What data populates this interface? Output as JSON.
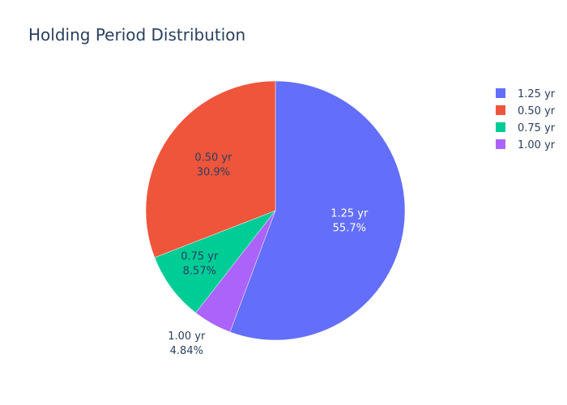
{
  "chart_data": {
    "type": "pie",
    "title": "Holding Period Distribution",
    "slices": [
      {
        "label": "1.25 yr",
        "percent_label": "55.7%",
        "value": 55.7,
        "color": "#636efa",
        "label_color": "#ffffff",
        "label_position": "inside"
      },
      {
        "label": "1.00 yr",
        "percent_label": "4.84%",
        "value": 4.84,
        "color": "#ab63fa",
        "label_color": "#2a3f5f",
        "label_position": "outside"
      },
      {
        "label": "0.75 yr",
        "percent_label": "8.57%",
        "value": 8.57,
        "color": "#00cc96",
        "label_color": "#2a3f5f",
        "label_position": "inside"
      },
      {
        "label": "0.50 yr",
        "percent_label": "30.9%",
        "value": 30.9,
        "color": "#ef553b",
        "label_color": "#2a3f5f",
        "label_position": "inside"
      }
    ],
    "legend": {
      "placement": "top-right",
      "entries": [
        {
          "label": "1.25 yr",
          "color": "#636efa"
        },
        {
          "label": "0.50 yr",
          "color": "#ef553b"
        },
        {
          "label": "0.75 yr",
          "color": "#00cc96"
        },
        {
          "label": "1.00 yr",
          "color": "#ab63fa"
        }
      ]
    },
    "direction": "clockwise",
    "start_angle": "top"
  }
}
